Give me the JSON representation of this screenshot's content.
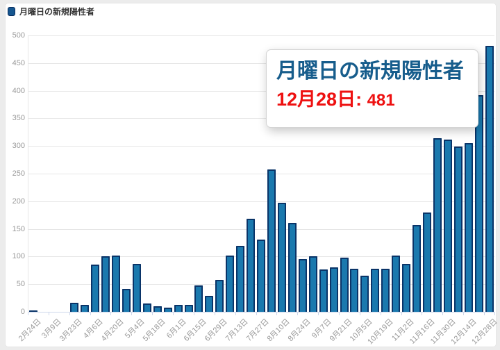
{
  "page": {
    "background_color": "#ececec",
    "card_background": "#ffffff"
  },
  "legend": {
    "label": "月曜日の新規陽性者",
    "marker_color": "#15568f",
    "marker_border_color": "#0a2d5e"
  },
  "tooltip": {
    "title": "月曜日の新規陽性者",
    "date_label": "12月28日:",
    "value": "481",
    "title_color": "#175d8c",
    "value_color": "#ee1111"
  },
  "chart_data": {
    "type": "bar",
    "title": "",
    "series_name": "月曜日の新規陽性者",
    "categories": [
      "2月24日",
      "3月2日",
      "3月9日",
      "3月16日",
      "3月23日",
      "3月30日",
      "4月6日",
      "4月13日",
      "4月20日",
      "4月27日",
      "5月4日",
      "5月11日",
      "5月18日",
      "5月25日",
      "6月1日",
      "6月8日",
      "6月15日",
      "6月22日",
      "6月29日",
      "7月6日",
      "7月13日",
      "7月20日",
      "7月27日",
      "8月3日",
      "8月10日",
      "8月17日",
      "8月24日",
      "8月31日",
      "9月7日",
      "9月14日",
      "9月21日",
      "9月28日",
      "10月5日",
      "10月12日",
      "10月19日",
      "10月26日",
      "11月2日",
      "11月9日",
      "11月16日",
      "11月23日",
      "11月30日",
      "12月7日",
      "12月14日",
      "12月21日",
      "12月28日"
    ],
    "values": [
      3,
      0,
      0,
      0,
      16,
      13,
      85,
      101,
      102,
      41,
      87,
      15,
      10,
      8,
      13,
      13,
      48,
      29,
      58,
      102,
      119,
      168,
      131,
      258,
      197,
      161,
      95,
      100,
      77,
      80,
      98,
      78,
      66,
      78,
      78,
      102,
      87,
      157,
      180,
      314,
      311,
      299,
      305,
      392,
      481
    ],
    "visible_xtick_labels": [
      "2月24日",
      "3月9日",
      "3月23日",
      "4月6日",
      "4月20日",
      "5月4日",
      "5月18日",
      "6月1日",
      "6月15日",
      "6月29日",
      "7月13日",
      "7月27日",
      "8月10日",
      "8月24日",
      "9月7日",
      "9月21日",
      "10月5日",
      "10月19日",
      "11月2日",
      "11月16日",
      "11月30日",
      "12月14日",
      "12月28日"
    ],
    "ytick_labels": [
      "0",
      "50",
      "100",
      "150",
      "200",
      "250",
      "300",
      "350",
      "400",
      "450",
      "500"
    ],
    "ylim": [
      0,
      500
    ],
    "ytick_interval": 50,
    "xlabel": "",
    "ylabel": "",
    "grid": true,
    "legend_position": "top-left",
    "highlighted_point": {
      "category": "12月28日",
      "value": 481
    },
    "bar_color": "#1a79ae",
    "bar_border_color": "#0a3468"
  }
}
